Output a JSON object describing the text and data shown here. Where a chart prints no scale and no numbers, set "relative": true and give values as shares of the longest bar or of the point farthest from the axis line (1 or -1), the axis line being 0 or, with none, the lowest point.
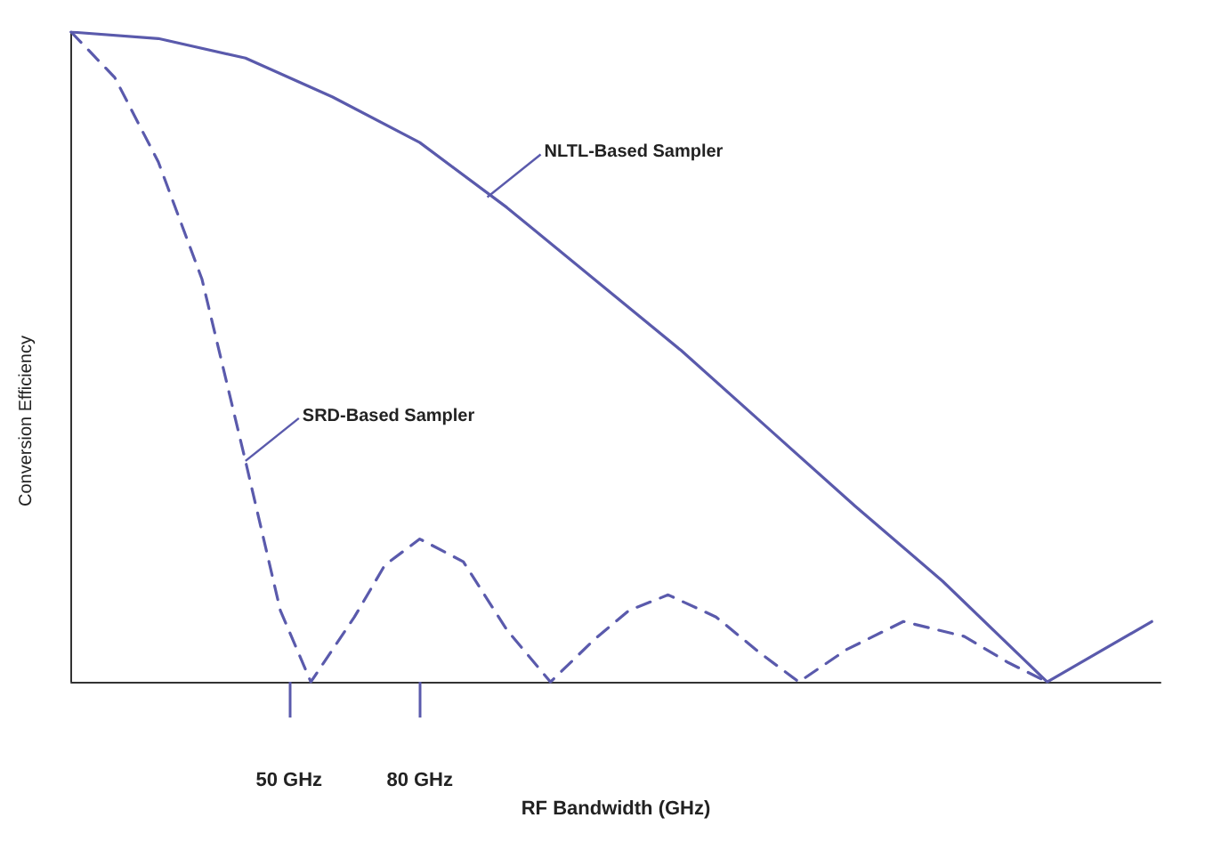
{
  "chart_data": {
    "type": "line",
    "relative": true,
    "xlabel": "RF Bandwidth (GHz)",
    "ylabel": "Conversion Efficiency",
    "xlim": [
      0,
      250
    ],
    "xticks": [
      {
        "value": 50,
        "label": "50 GHz"
      },
      {
        "value": 80,
        "label": "80 GHz"
      }
    ],
    "grid": false,
    "marker": "none",
    "series": [
      {
        "color": "#5a5aac",
        "line_style": "solid",
        "x": [
          0,
          20,
          40,
          60,
          80,
          100,
          120,
          140,
          160,
          180,
          200,
          224,
          248
        ],
        "values": [
          1,
          0.99,
          0.96,
          0.9,
          0.83,
          0.73,
          0.62,
          0.51,
          0.39,
          0.27,
          0.155,
          0,
          0.093
        ]
      },
      {
        "color": "#5a5aac",
        "line_style": "dashed",
        "x": [
          0,
          10,
          20,
          30,
          40,
          48,
          55,
          65,
          72,
          80,
          90,
          100,
          110,
          120,
          128,
          137,
          148,
          158,
          167,
          178,
          191,
          205,
          215,
          224
        ],
        "values": [
          1,
          0.93,
          0.8,
          0.62,
          0.34,
          0.11,
          0,
          0.1,
          0.18,
          0.22,
          0.185,
          0.08,
          0,
          0.065,
          0.11,
          0.134,
          0.1,
          0.045,
          0,
          0.05,
          0.093,
          0.07,
          0.03,
          0
        ]
      }
    ],
    "annotations": [
      {
        "text": "NLTL-Based Sampler",
        "x": 95.5,
        "y": 0.746
      },
      {
        "text": "SRD-Based Sampler",
        "x": 40,
        "y": 0.34
      }
    ]
  }
}
